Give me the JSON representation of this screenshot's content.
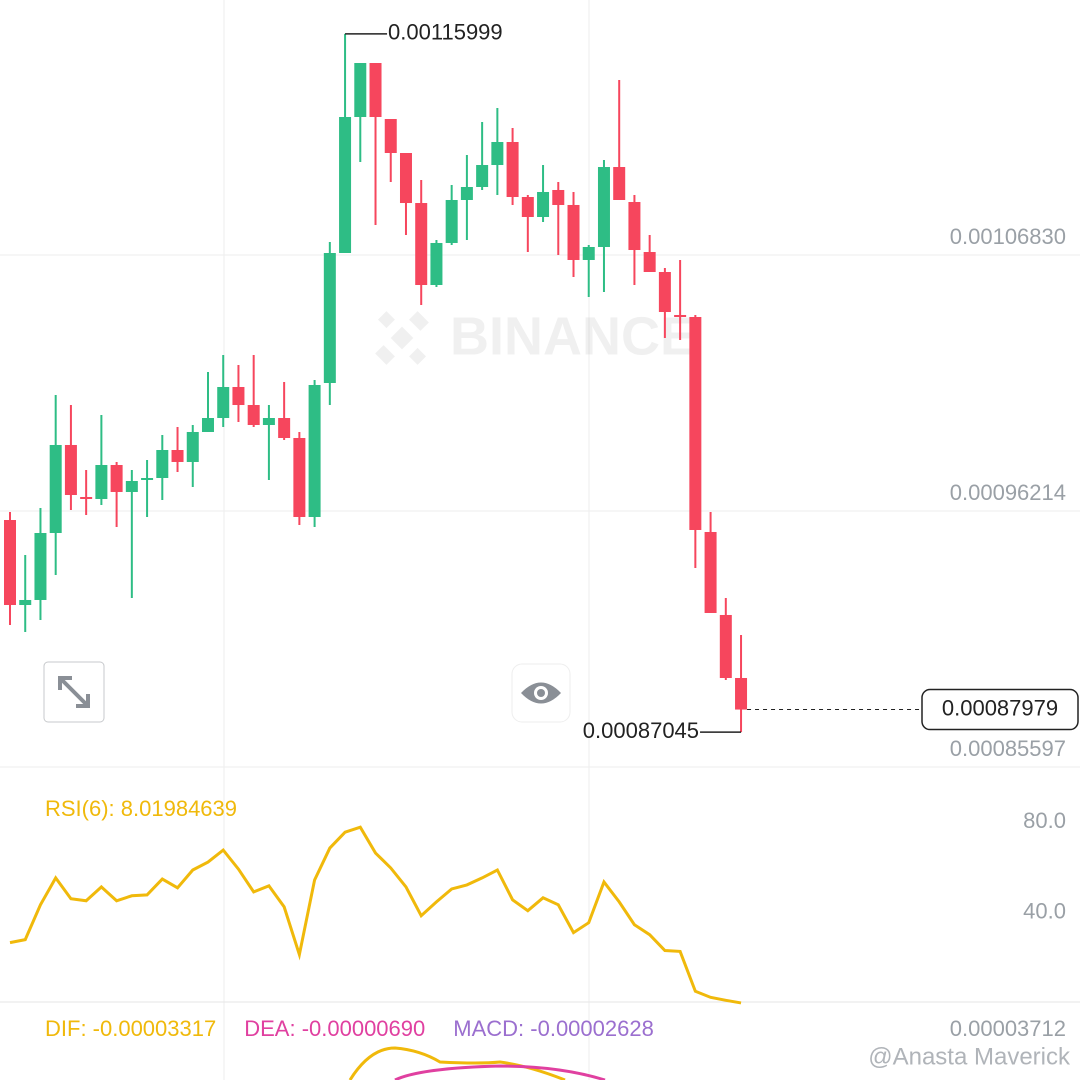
{
  "chart_data": {
    "type": "candlestick",
    "up_color": "#2ebd85",
    "down_color": "#f6465d",
    "open": [
      0.0009584,
      0.00092315,
      0.00092523,
      0.00095301,
      0.00098951,
      0.00096794,
      0.00096711,
      0.00098121,
      0.00097002,
      0.00097499,
      0.00097582,
      0.00098743,
      0.00098246,
      0.0009949,
      0.0010007,
      0.00101356,
      0.00100609,
      0.0009978,
      0.0010007,
      0.00099241,
      0.00095965,
      0.00101522,
      0.00106913,
      0.00112553,
      0.00114792,
      0.0011247,
      0.0011106,
      0.00108986,
      0.00105586,
      0.00107328,
      0.00109111,
      0.0010965,
      0.00110562,
      0.00111516,
      0.00109235,
      0.00108406,
      0.00109526,
      0.00108904,
      0.00106623,
      0.00107162,
      0.00110479,
      0.00109028,
      0.00106954,
      0.00106125,
      0.00104342,
      0.00104259,
      0.00095343,
      0.00091901,
      0.00089288
    ],
    "high": [
      0.00096172,
      0.00094389,
      0.00096338,
      0.00101024,
      0.00100609,
      0.00097914,
      0.00100195,
      0.00098246,
      0.00097914,
      0.00098329,
      0.00099365,
      0.00099697,
      0.0009978,
      0.00101978,
      0.00102683,
      0.00102268,
      0.00102683,
      0.00100609,
      0.00101563,
      0.0009949,
      0.00101646,
      0.00107369,
      0.00115999,
      0.00114792,
      0.00114792,
      0.0011247,
      0.0011106,
      0.0010994,
      0.00107452,
      0.00109733,
      0.00110977,
      0.00112346,
      0.00112926,
      0.00112097,
      0.00109318,
      0.00110562,
      0.00109857,
      0.00109443,
      0.00107245,
      0.0011077,
      0.00114087,
      0.00109318,
      0.00107659,
      0.00106291,
      0.00106623,
      0.00104342,
      0.00096172,
      0.00092606,
      0.00091071
    ],
    "low": [
      0.00091486,
      0.00091196,
      0.00091693,
      0.0009356,
      0.00096255,
      0.00096048,
      0.00096462,
      0.0009555,
      0.00092606,
      0.00095965,
      0.0009667,
      0.00097831,
      0.00097209,
      0.0009949,
      0.00099697,
      0.00099905,
      0.00099697,
      0.00097499,
      0.00099158,
      0.00095633,
      0.0009555,
      0.00100609,
      0.00106913,
      0.00110687,
      0.00108074,
      0.00109857,
      0.00107659,
      0.00104756,
      0.00105503,
      0.00107245,
      0.00107452,
      0.00109526,
      0.00109318,
      0.00108904,
      0.00106954,
      0.00108199,
      0.0010683,
      0.00105918,
      0.00105088,
      0.00105296,
      0.00109111,
      0.00105586,
      0.00106125,
      0.00103388,
      0.00103305,
      0.0009385,
      0.00091984,
      0.00089205,
      0.00087045
    ],
    "close": [
      0.00092315,
      0.00092523,
      0.00095301,
      0.00098951,
      0.00096877,
      0.00096711,
      0.00098121,
      0.00097002,
      0.00097458,
      0.00097582,
      0.00098743,
      0.00098246,
      0.0009949,
      0.0010007,
      0.00101356,
      0.00100609,
      0.0009978,
      0.0010007,
      0.00099241,
      0.00095965,
      0.00101439,
      0.00106913,
      0.00112553,
      0.00114792,
      0.00112553,
      0.0011106,
      0.00108986,
      0.00105586,
      0.00107328,
      0.00109111,
      0.0010965,
      0.00110562,
      0.00111516,
      0.00109235,
      0.00108406,
      0.00109443,
      0.00108904,
      0.00106623,
      0.00107162,
      0.00110479,
      0.00109111,
      0.00107037,
      0.00106125,
      0.00104466,
      0.00104259,
      0.00095426,
      0.00091984,
      0.00089288,
      0.00087979
    ],
    "ylim": [
      0.00085597,
      0.00117405
    ],
    "yticks": [
      {
        "value": 0.0010683,
        "label": "0.00106830"
      },
      0.00096214,
      0.00085597
    ],
    "grid": true,
    "rsi": {
      "type": "line",
      "label": "RSI(6): 8.01984639",
      "color": "#f0b90b",
      "values": [
        34.7,
        36.0,
        51.4,
        63.3,
        54.1,
        53.2,
        59.3,
        53.2,
        55.4,
        55.8,
        62.8,
        58.9,
        66.8,
        70.3,
        75.6,
        67.2,
        57.1,
        59.8,
        50.5,
        29.4,
        62.4,
        76.5,
        83.5,
        85.7,
        74.3,
        67.7,
        59.3,
        46.6,
        52.7,
        58.4,
        60.2,
        63.3,
        66.8,
        53.6,
        48.8,
        54.5,
        51.4,
        39.1,
        43.5,
        61.5,
        52.7,
        42.6,
        38.2,
        31.2,
        30.8,
        13.2,
        10.5,
        9.2,
        8.01984639
      ],
      "ylim": [
        8,
        111
      ],
      "yticks": [
        {
          "value": 80,
          "label": "80.0"
        },
        {
          "value": 40,
          "label": "40.0"
        }
      ]
    },
    "macd": {
      "labels": [
        {
          "text": "DIF: -0.00003317",
          "color": "#f0b90b"
        },
        {
          "text": "DEA: -0.00000690",
          "color": "#e040a0"
        },
        {
          "text": "MACD: -0.00002628",
          "color": "#9b6fcf"
        }
      ],
      "yticks": [
        3.712e-05
      ]
    }
  },
  "watermark": "BINANCE",
  "credit": "@Anasta Maverick"
}
